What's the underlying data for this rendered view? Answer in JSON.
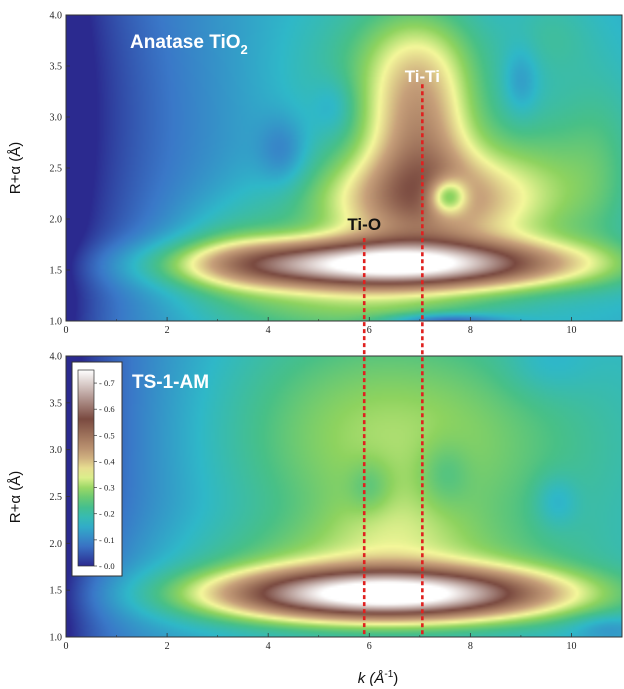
{
  "chart_data": [
    {
      "type": "heatmap",
      "title": "Anatase TiO2",
      "title_main": "Anatase TiO",
      "title_sub": "2",
      "xlabel": "",
      "ylabel_main": "R+α (Å)",
      "xlim": [
        0,
        11
      ],
      "ylim": [
        1.0,
        4.0
      ],
      "x_ticks": [
        "0",
        "2",
        "4",
        "6",
        "8",
        "10"
      ],
      "y_ticks": [
        "1.0",
        "1.5",
        "2.0",
        "2.5",
        "3.0",
        "3.5",
        "4.0"
      ],
      "colormap": [
        "#2b2a8f",
        "#3a78c8",
        "#2fb8c8",
        "#48c087",
        "#8ed35f",
        "#f4f79a",
        "#c7a07a",
        "#7a4a40",
        "#ffffff"
      ],
      "annotations": [
        {
          "text": "Ti-O",
          "k": 5.9,
          "r": 1.95
        },
        {
          "text": "Ti-Ti",
          "k": 7.05,
          "r": 3.4
        }
      ],
      "blobs": [
        {
          "k": 6.3,
          "r": 1.55,
          "sk": 2.5,
          "sr": 0.17,
          "v": 0.6
        },
        {
          "k": 7.0,
          "r": 2.15,
          "sk": 1.5,
          "sr": 0.35,
          "v": 0.3
        },
        {
          "k": 7.0,
          "r": 2.85,
          "sk": 0.75,
          "sr": 0.5,
          "v": 0.24
        },
        {
          "k": 7.0,
          "r": 3.6,
          "sk": 0.9,
          "sr": 0.4,
          "v": 0.12
        },
        {
          "k": 3.3,
          "r": 1.7,
          "sk": 0.9,
          "sr": 0.35,
          "v": 0.08
        },
        {
          "k": 5.6,
          "r": 1.1,
          "sk": 2.0,
          "sr": 0.2,
          "v": 0.12
        },
        {
          "k": 9.3,
          "r": 2.4,
          "sk": 1.0,
          "sr": 0.55,
          "v": 0.09
        },
        {
          "k": 10.6,
          "r": 2.6,
          "sk": 0.6,
          "sr": 0.7,
          "v": 0.06
        },
        {
          "k": 9.6,
          "r": 3.8,
          "sk": 0.6,
          "sr": 0.3,
          "v": 0.05
        },
        {
          "k": 5.6,
          "r": 3.4,
          "sk": 1.3,
          "sr": 0.7,
          "v": 0.05
        },
        {
          "k": 7.55,
          "r": 2.22,
          "sk": 0.28,
          "sr": 0.13,
          "v": -0.24
        },
        {
          "k": 4.3,
          "r": 2.65,
          "sk": 0.35,
          "sr": 0.25,
          "v": -0.07
        },
        {
          "k": 5.3,
          "r": 3.1,
          "sk": 0.3,
          "sr": 0.2,
          "v": -0.05
        },
        {
          "k": 9.0,
          "r": 3.35,
          "sk": 0.25,
          "sr": 0.25,
          "v": -0.06
        },
        {
          "k": 7.5,
          "r": 1.0,
          "sk": 0.8,
          "sr": 0.05,
          "v": -0.15
        },
        {
          "k": 0.2,
          "r": 3.0,
          "sk": 2.2,
          "sr": 1.6,
          "v": -0.08
        }
      ]
    },
    {
      "type": "heatmap",
      "title": "TS-1-AM",
      "title_main": "TS-1-AM",
      "title_sub": "",
      "xlabel_main": "k (Å",
      "xlabel_sup": "-1",
      "xlabel_tail": ")",
      "ylabel_main": "R+α (Å)",
      "xlim": [
        0,
        11
      ],
      "ylim": [
        1.0,
        4.0
      ],
      "x_ticks": [
        "0",
        "2",
        "4",
        "6",
        "8",
        "10"
      ],
      "y_ticks": [
        "1.0",
        "1.5",
        "2.0",
        "2.5",
        "3.0",
        "3.5",
        "4.0"
      ],
      "colorbar": {
        "ticks": [
          "0.0",
          "0.1",
          "0.2",
          "0.3",
          "0.4",
          "0.5",
          "0.6",
          "0.7"
        ],
        "range": [
          0.0,
          0.75
        ]
      },
      "blobs": [
        {
          "k": 6.3,
          "r": 1.45,
          "sk": 2.4,
          "sr": 0.2,
          "v": 0.62
        },
        {
          "k": 6.0,
          "r": 1.85,
          "sk": 2.8,
          "sr": 0.3,
          "v": 0.08
        },
        {
          "k": 5.7,
          "r": 3.2,
          "sk": 2.2,
          "sr": 0.9,
          "v": 0.1
        },
        {
          "k": 8.0,
          "r": 3.0,
          "sk": 2.6,
          "sr": 0.9,
          "v": 0.08
        },
        {
          "k": 6.5,
          "r": 2.2,
          "sk": 1.0,
          "sr": 0.3,
          "v": 0.05
        },
        {
          "k": 6.0,
          "r": 2.6,
          "sk": 0.3,
          "sr": 0.2,
          "v": -0.05
        },
        {
          "k": 7.5,
          "r": 2.75,
          "sk": 0.35,
          "sr": 0.25,
          "v": -0.05
        },
        {
          "k": 9.7,
          "r": 2.45,
          "sk": 0.3,
          "sr": 0.2,
          "v": -0.06
        },
        {
          "k": 9.5,
          "r": 3.9,
          "sk": 0.6,
          "sr": 0.25,
          "v": -0.04
        },
        {
          "k": 10.7,
          "r": 1.1,
          "sk": 0.5,
          "sr": 0.1,
          "v": -0.05
        },
        {
          "k": 0.0,
          "r": 3.3,
          "sk": 2.0,
          "sr": 1.7,
          "v": -0.06
        }
      ]
    }
  ]
}
